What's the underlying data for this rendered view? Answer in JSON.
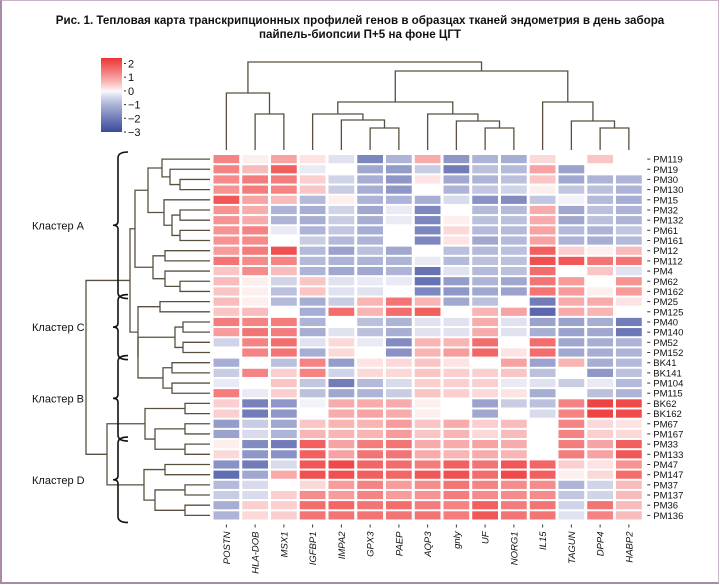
{
  "title_lines": [
    "Рис. 1. Тепловая карта транскрипционных профилей генов в образцах тканей эндометрия в день забора",
    "пайпель-биопсии П+5 на фоне ЦГТ"
  ],
  "chart_data": {
    "type": "heatmap",
    "title": "Рис. 1. Тепловая карта транскрипционных профилей генов в образцах тканей эндометрия в день забора пайпель-биопсии П+5 на фоне ЦГТ",
    "columns": [
      "POSTN",
      "HLA-DOB",
      "MSX1",
      "IGFBP1",
      "IMPA2",
      "GPX3",
      "PAEP",
      "AQP3",
      "gnly",
      "UF",
      "NORG1",
      "IL15",
      "TAGUN",
      "DPP4",
      "HABP2"
    ],
    "rows": [
      "PM119",
      "PM19",
      "PM30",
      "PM130",
      "PM15",
      "PM32",
      "PM132",
      "PM61",
      "PM161",
      "PM12",
      "PM112",
      "PM4",
      "PM62",
      "PM162",
      "PM25",
      "PM125",
      "PM40",
      "PM140",
      "PM52",
      "PM152",
      "BK41",
      "BK141",
      "PM104",
      "PM115",
      "BK62",
      "BK162",
      "PM67",
      "PM167",
      "PM33",
      "PM133",
      "PM47",
      "PM147",
      "PM37",
      "PM137",
      "PM36",
      "PM136"
    ],
    "values": [
      [
        1.3,
        0.1,
        0.9,
        0.2,
        -0.3,
        -1.8,
        -1.0,
        0.8,
        -1.5,
        -1.0,
        -1.1,
        0.3,
        0.0,
        0.5,
        0.0
      ],
      [
        1.3,
        0.6,
        1.8,
        -0.2,
        0.0,
        -1.2,
        -1.4,
        -0.6,
        -2.0,
        -0.8,
        -0.9,
        0.9,
        -1.3,
        0.0,
        0.0
      ],
      [
        1.2,
        1.4,
        1.4,
        0.4,
        -0.5,
        -1.1,
        -1.5,
        0.2,
        -1.2,
        -1.0,
        -0.8,
        0.5,
        -1.2,
        -1.0,
        -1.0
      ],
      [
        1.1,
        1.4,
        1.3,
        0.5,
        -0.6,
        -1.1,
        -1.5,
        0.0,
        -1.0,
        -0.7,
        -0.5,
        0.1,
        -0.7,
        -0.8,
        -1.0
      ],
      [
        1.9,
        0.9,
        0.6,
        -0.9,
        0.1,
        -1.0,
        -1.0,
        -1.1,
        -0.4,
        -1.6,
        -1.7,
        -0.7,
        -0.1,
        -0.9,
        -1.1
      ],
      [
        1.1,
        0.8,
        -1.0,
        -1.1,
        -0.5,
        -1.2,
        -0.2,
        -1.8,
        0.0,
        -0.9,
        -0.9,
        0.8,
        -1.2,
        -0.8,
        -1.0
      ],
      [
        1.1,
        0.8,
        -1.0,
        -1.1,
        -0.6,
        -1.1,
        -0.2,
        -1.8,
        0.1,
        -0.8,
        -0.8,
        0.8,
        -1.2,
        -0.8,
        -1.0
      ],
      [
        1.1,
        1.3,
        -0.2,
        -1.0,
        -0.7,
        -1.1,
        0.0,
        -1.8,
        0.3,
        -0.9,
        -0.9,
        0.9,
        -0.9,
        -1.0,
        -0.7
      ],
      [
        1.1,
        1.2,
        0.0,
        -0.6,
        -0.9,
        -1.0,
        0.0,
        -1.8,
        0.2,
        -1.2,
        -0.9,
        0.9,
        -1.0,
        -1.1,
        -0.9
      ],
      [
        1.0,
        1.4,
        2.0,
        -0.9,
        -1.3,
        -0.8,
        -1.2,
        0.0,
        -0.8,
        -0.9,
        -0.8,
        1.8,
        0.4,
        0.1,
        0.6
      ],
      [
        1.5,
        1.2,
        1.3,
        -0.9,
        -1.0,
        -1.0,
        -1.0,
        -0.2,
        -0.9,
        -0.8,
        -0.8,
        2.0,
        1.9,
        1.5,
        1.5
      ],
      [
        0.5,
        1.2,
        0.6,
        -1.0,
        -1.2,
        -1.2,
        -1.0,
        -2.2,
        -0.3,
        -0.9,
        -0.8,
        1.6,
        0.0,
        0.5,
        -0.3
      ],
      [
        0.6,
        0.1,
        -0.5,
        0.5,
        -0.3,
        -0.2,
        -0.2,
        -2.2,
        -1.4,
        -1.0,
        -1.2,
        1.5,
        1.0,
        0.0,
        1.1
      ],
      [
        0.5,
        0.1,
        -0.8,
        0.5,
        -0.3,
        -0.3,
        0.0,
        -1.8,
        -1.5,
        -1.2,
        -1.3,
        1.5,
        1.0,
        0.1,
        1.0
      ],
      [
        0.6,
        0.1,
        -0.9,
        -1.1,
        -0.6,
        0.7,
        1.5,
        0.7,
        -1.2,
        -0.8,
        0.0,
        -2.0,
        0.8,
        0.8,
        0.2
      ],
      [
        0.5,
        0.6,
        0.0,
        -1.1,
        1.6,
        0.7,
        1.6,
        1.8,
        0.0,
        0.7,
        0.9,
        -2.4,
        0.8,
        0.7,
        0.0
      ],
      [
        1.4,
        1.3,
        1.4,
        -1.0,
        0.0,
        -0.8,
        -1.0,
        -0.3,
        -0.3,
        0.8,
        -0.3,
        -1.3,
        -1.3,
        -1.1,
        -2.0
      ],
      [
        1.0,
        1.5,
        1.4,
        -1.1,
        -0.3,
        -0.8,
        -1.1,
        -0.3,
        -0.3,
        0.8,
        -0.3,
        -1.1,
        -1.3,
        -1.2,
        -2.1
      ],
      [
        -0.5,
        1.3,
        1.6,
        -0.3,
        0.3,
        -0.2,
        -1.7,
        0.7,
        0.7,
        1.6,
        0.0,
        1.6,
        -1.2,
        -1.1,
        -1.0
      ],
      [
        0.0,
        1.3,
        1.5,
        -1.1,
        0.3,
        0.0,
        -1.6,
        0.7,
        1.0,
        1.7,
        0.2,
        1.6,
        -1.2,
        -1.1,
        -1.0
      ],
      [
        -1.1,
        0.0,
        -0.8,
        1.3,
        -1.4,
        0.2,
        0.3,
        0.5,
        0.2,
        0.0,
        0.9,
        -1.3,
        0.7,
        -1.1,
        -0.9
      ],
      [
        -0.6,
        1.3,
        0.4,
        1.3,
        -0.5,
        0.3,
        0.3,
        0.5,
        0.4,
        0.4,
        0.5,
        -0.8,
        0.0,
        -1.5,
        -0.8
      ],
      [
        -0.2,
        0.0,
        0.5,
        -0.7,
        -2.0,
        -0.9,
        -0.4,
        0.4,
        0.4,
        0.4,
        -0.2,
        -0.3,
        -0.6,
        -0.2,
        -0.9
      ],
      [
        1.4,
        -0.2,
        0.4,
        -0.8,
        -1.2,
        -1.0,
        -0.6,
        0.5,
        0.4,
        0.3,
        0.2,
        -1.1,
        0.0,
        -0.8,
        -1.0
      ],
      [
        0.4,
        -1.9,
        -1.5,
        -0.1,
        0.8,
        0.8,
        0.8,
        0.1,
        0.0,
        -1.3,
        -0.6,
        -0.8,
        1.3,
        2.2,
        2.1
      ],
      [
        0.4,
        -2.0,
        -1.5,
        0.0,
        0.8,
        0.9,
        0.8,
        0.1,
        0.0,
        -1.2,
        0.0,
        -0.4,
        1.3,
        2.2,
        2.1
      ],
      [
        -1.4,
        -0.6,
        -1.2,
        0.5,
        0.7,
        0.7,
        1.0,
        0.5,
        0.8,
        0.4,
        0.6,
        0.0,
        1.3,
        0.3,
        0.2
      ],
      [
        -1.3,
        -0.4,
        -1.0,
        0.7,
        0.7,
        0.7,
        1.0,
        0.5,
        0.7,
        0.3,
        0.6,
        0.0,
        1.3,
        0.4,
        0.3
      ],
      [
        0.1,
        -1.7,
        -2.0,
        1.8,
        0.9,
        1.4,
        1.5,
        0.8,
        0.8,
        0.9,
        0.8,
        0.0,
        1.4,
        0.9,
        1.8
      ],
      [
        0.3,
        -1.5,
        -1.6,
        1.8,
        0.9,
        1.5,
        1.5,
        0.8,
        0.7,
        0.8,
        0.7,
        0.0,
        1.4,
        0.9,
        1.9
      ],
      [
        -1.6,
        -2.0,
        -0.4,
        1.9,
        2.1,
        1.7,
        1.6,
        1.4,
        1.8,
        1.5,
        1.9,
        1.7,
        0.4,
        0.2,
        1.1
      ],
      [
        -2.3,
        -1.2,
        0.8,
        2.0,
        2.0,
        1.8,
        1.7,
        1.9,
        2.0,
        1.6,
        2.1,
        1.8,
        0.1,
        0.3,
        1.6
      ],
      [
        -0.9,
        -0.4,
        0.0,
        0.3,
        1.0,
        1.3,
        1.0,
        1.2,
        1.5,
        1.3,
        1.2,
        1.2,
        -1.0,
        -0.5,
        0.6
      ],
      [
        -0.6,
        -0.4,
        0.4,
        1.2,
        1.0,
        1.3,
        1.0,
        1.1,
        1.4,
        1.2,
        1.2,
        1.2,
        -0.7,
        -0.5,
        0.6
      ],
      [
        -1.1,
        0.4,
        0.4,
        1.6,
        1.7,
        1.5,
        1.6,
        1.4,
        1.3,
        1.8,
        1.4,
        1.5,
        -0.5,
        1.5,
        0.6
      ],
      [
        -1.0,
        0.3,
        0.4,
        1.5,
        1.5,
        1.5,
        1.5,
        1.5,
        1.4,
        1.9,
        1.5,
        1.5,
        -0.3,
        1.3,
        0.6
      ]
    ],
    "color_scale": {
      "min": -3,
      "max": 2.4,
      "low_color": "#3b4a9e",
      "mid_color": "#ffffff",
      "high_color": "#ee3535",
      "ticks": [
        "2",
        "1",
        "0",
        "−1",
        "−2",
        "−3"
      ],
      "tick_values": [
        2,
        1,
        0,
        -1,
        -2,
        -3
      ]
    },
    "legend_placement": "top-left",
    "clusters": [
      {
        "label": "Кластер А",
        "first_row": "PM119",
        "last_row": "PM162"
      },
      {
        "label": "Кластер С",
        "first_row": "PM25",
        "last_row": "PM152"
      },
      {
        "label": "Кластер В",
        "first_row": "BK41",
        "last_row": "PM167"
      },
      {
        "label": "Кластер D",
        "first_row": "PM33",
        "last_row": "PM136"
      }
    ],
    "column_dendrogram": "merges",
    "row_dendrogram": "merges"
  }
}
